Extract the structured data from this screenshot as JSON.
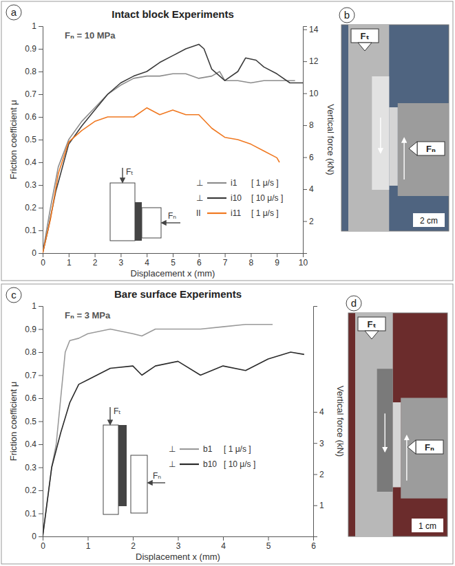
{
  "chart_data": [
    {
      "type": "line",
      "panel": "a",
      "title": "Intact block Experiments",
      "x_label": "Displacement x (mm)",
      "y_label": "Friction coefficient   μ",
      "y2_label": "Vertical force (kN)",
      "annotations": [
        "Fₙ = 10 MPa"
      ],
      "inset_labels": [
        "Fₜ",
        "Fₙ"
      ],
      "xlim": [
        0,
        10
      ],
      "xticks": [
        0,
        1,
        2,
        3,
        4,
        5,
        6,
        7,
        8,
        9,
        10
      ],
      "ylim": [
        0,
        1
      ],
      "yticks": [
        0,
        0.1,
        0.2,
        0.3,
        0.4,
        0.5,
        0.6,
        0.7,
        0.8,
        0.9,
        1
      ],
      "y2lim": [
        0,
        14.2
      ],
      "y2ticks": [
        2,
        4,
        6,
        8,
        10,
        12,
        14
      ],
      "legend": "lower right",
      "series": [
        {
          "name": "i1",
          "symbol": "⊥",
          "rate": "[ 1 μ/s ]",
          "color": "#8c8c8c",
          "x": [
            0,
            0.3,
            0.6,
            1,
            1.5,
            2,
            2.5,
            3,
            3.5,
            4,
            4.5,
            5,
            5.5,
            6,
            6.5,
            6.8,
            7,
            7.5,
            8,
            8.5,
            9,
            9.7
          ],
          "values": [
            0,
            0.2,
            0.38,
            0.5,
            0.58,
            0.64,
            0.7,
            0.74,
            0.77,
            0.78,
            0.78,
            0.79,
            0.79,
            0.77,
            0.78,
            0.8,
            0.76,
            0.76,
            0.75,
            0.76,
            0.76,
            0.76
          ]
        },
        {
          "name": "i10",
          "symbol": "⊥",
          "rate": "[ 10 μ/s ]",
          "color": "#3a3a3a",
          "x": [
            0,
            0.2,
            0.5,
            1,
            1.5,
            2,
            2.5,
            3,
            3.5,
            4,
            4.5,
            5,
            5.5,
            6,
            6.2,
            6.5,
            7,
            7.5,
            7.8,
            8.2,
            8.5,
            9,
            9.5,
            10
          ],
          "values": [
            0,
            0.1,
            0.27,
            0.48,
            0.56,
            0.63,
            0.7,
            0.75,
            0.78,
            0.8,
            0.84,
            0.87,
            0.9,
            0.92,
            0.9,
            0.81,
            0.76,
            0.8,
            0.86,
            0.85,
            0.82,
            0.79,
            0.75,
            0.75
          ]
        },
        {
          "name": "i11",
          "symbol": "II",
          "rate": "[ 1 μ/s ]",
          "color": "#f07820",
          "x": [
            0,
            0.3,
            0.6,
            1,
            1.5,
            2,
            2.5,
            3,
            3.5,
            4,
            4.5,
            5,
            5.5,
            6,
            6.5,
            7,
            7.5,
            8,
            8.5,
            9,
            9.1
          ],
          "values": [
            0,
            0.15,
            0.35,
            0.49,
            0.54,
            0.58,
            0.6,
            0.6,
            0.6,
            0.64,
            0.61,
            0.63,
            0.61,
            0.61,
            0.55,
            0.51,
            0.5,
            0.48,
            0.45,
            0.42,
            0.4
          ]
        }
      ]
    },
    {
      "type": "line",
      "panel": "c",
      "title": "Bare surface Experiments",
      "x_label": "Displacement x (mm)",
      "y_label": "Friction coefficient   μ",
      "y2_label": "Vertical force (kN)",
      "annotations": [
        "Fₙ = 3 MPa"
      ],
      "inset_labels": [
        "Fₜ",
        "Fₙ"
      ],
      "xlim": [
        0,
        6
      ],
      "xticks": [
        0,
        1,
        2,
        3,
        4,
        5,
        6
      ],
      "ylim": [
        0,
        1
      ],
      "yticks": [
        0,
        0.1,
        0.2,
        0.3,
        0.4,
        0.5,
        0.6,
        0.7,
        0.8,
        0.9,
        1
      ],
      "y2lim": [
        0,
        7.4
      ],
      "y2ticks": [
        1,
        2,
        3,
        4
      ],
      "legend": "lower right",
      "series": [
        {
          "name": "b1",
          "symbol": "⊥",
          "rate": "[ 1 μ/s ]",
          "color": "#9a9a9a",
          "x": [
            0,
            0.1,
            0.2,
            0.3,
            0.4,
            0.5,
            0.6,
            0.8,
            1,
            1.5,
            2,
            2.2,
            2.5,
            3,
            3.5,
            4,
            4.5,
            5,
            5.1
          ],
          "values": [
            0,
            0.15,
            0.3,
            0.4,
            0.6,
            0.8,
            0.85,
            0.86,
            0.88,
            0.9,
            0.88,
            0.87,
            0.9,
            0.9,
            0.9,
            0.91,
            0.92,
            0.92,
            0.92
          ]
        },
        {
          "name": "b10",
          "symbol": "⊥",
          "rate": "[ 10 μ/s ]",
          "color": "#2a2a2a",
          "x": [
            0,
            0.2,
            0.4,
            0.6,
            0.8,
            1,
            1.5,
            2,
            2.2,
            2.5,
            3,
            3.5,
            4,
            4.5,
            5,
            5.5,
            5.8
          ],
          "values": [
            0,
            0.3,
            0.45,
            0.58,
            0.66,
            0.68,
            0.73,
            0.74,
            0.7,
            0.74,
            0.76,
            0.7,
            0.74,
            0.72,
            0.77,
            0.8,
            0.79
          ]
        }
      ]
    }
  ],
  "photos": [
    {
      "panel": "b",
      "labels": [
        "Fₜ",
        "Fₙ"
      ],
      "scale": "2 cm"
    },
    {
      "panel": "d",
      "labels": [
        "Fₜ",
        "Fₙ"
      ],
      "scale": "1 cm"
    }
  ]
}
